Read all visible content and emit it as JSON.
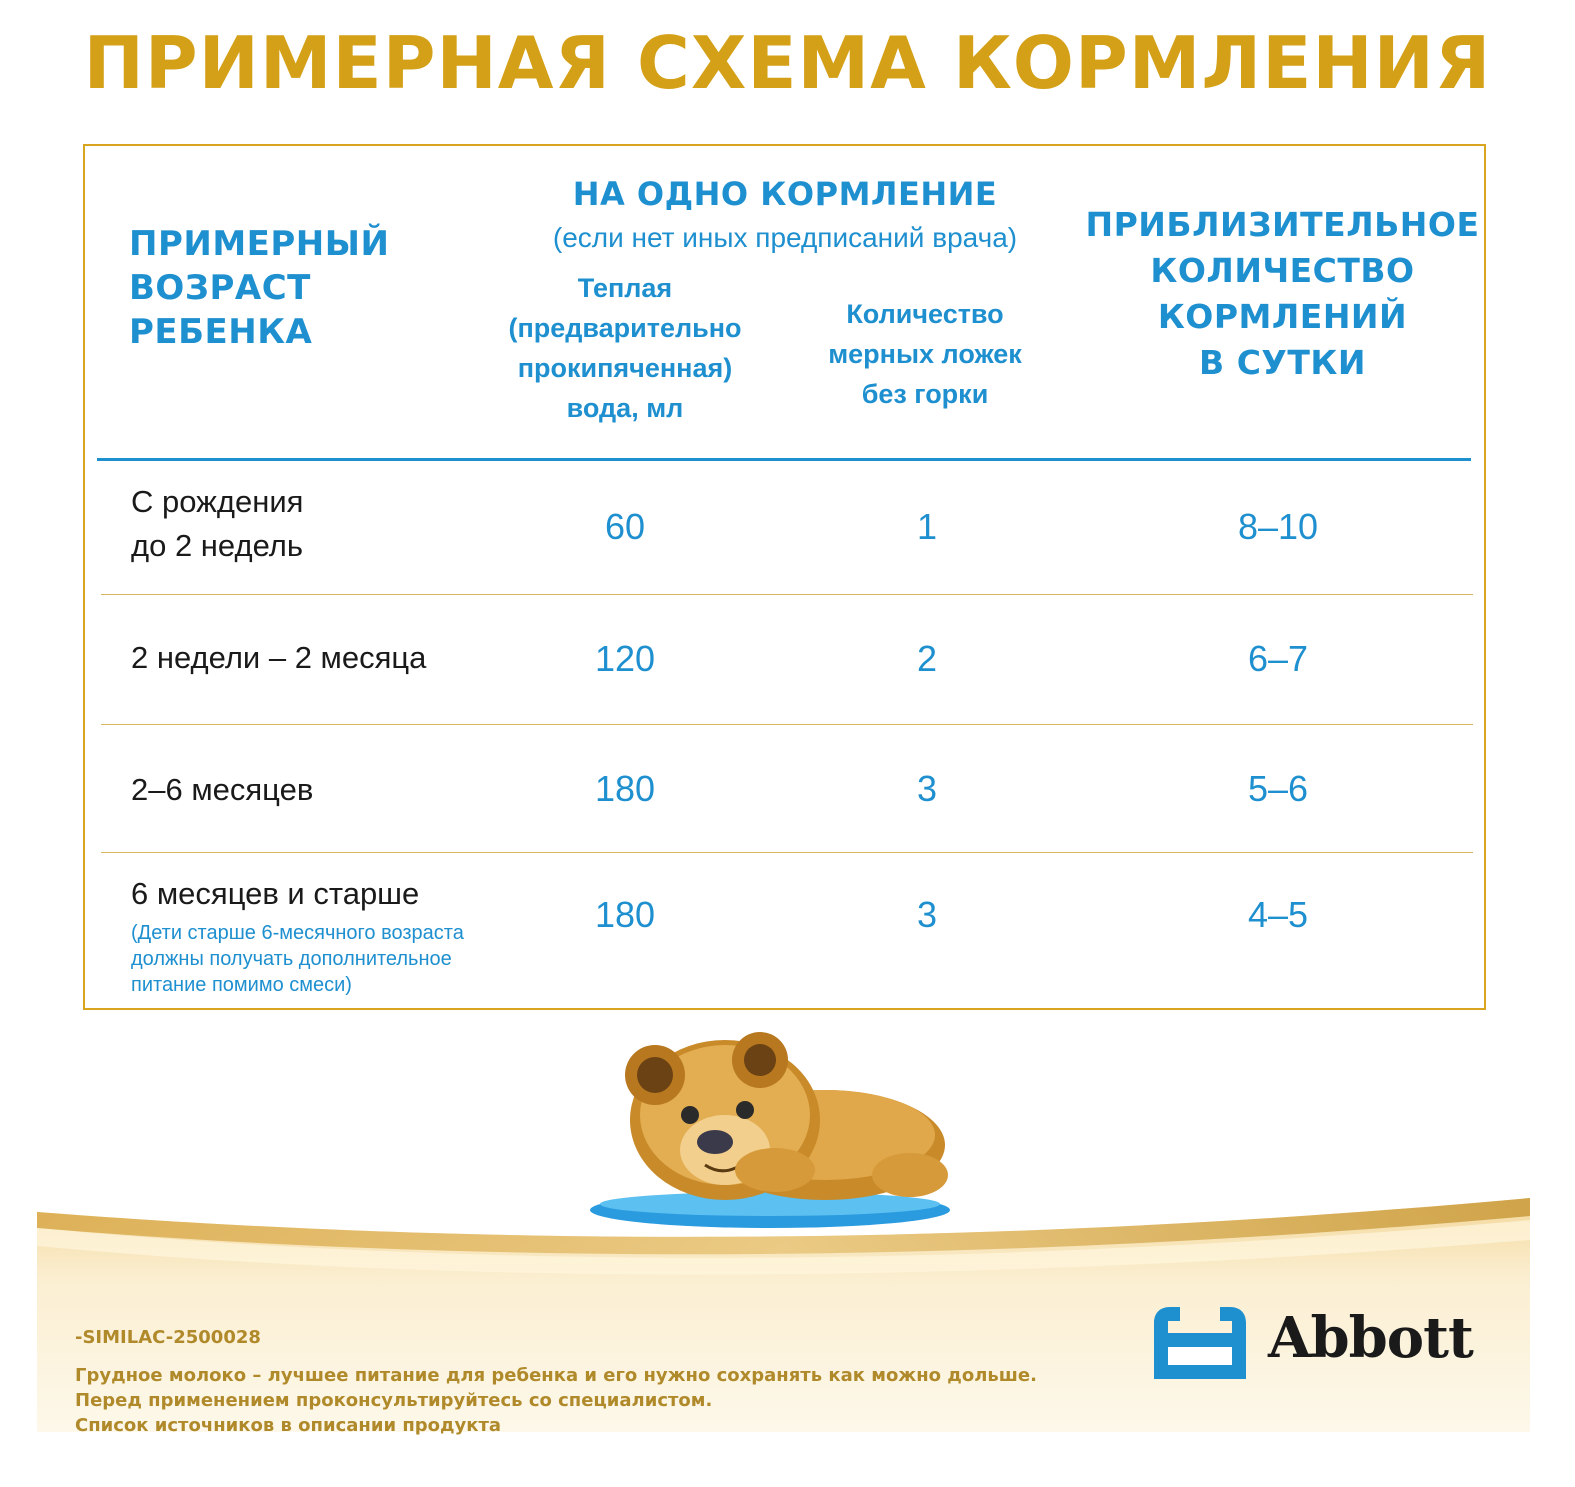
{
  "title": "ПРИМЕРНАЯ СХЕМА КОРМЛЕНИЯ",
  "table": {
    "header": {
      "age_line1": "ПРИМЕРНЫЙ",
      "age_line2": "ВОЗРАСТ",
      "age_line3": "РЕБЕНКА",
      "per_feeding": "НА ОДНО КОРМЛЕНИЕ",
      "per_feeding_note": "(если нет иных предписаний врача)",
      "water_line1": "Теплая",
      "water_line2": "(предварительно",
      "water_line3": "прокипяченная)",
      "water_line4": "вода, мл",
      "spoons_line1": "Количество",
      "spoons_line2": "мерных ложек",
      "spoons_line3": "без горки",
      "count_line1": "ПРИБЛИЗИТЕЛЬНОЕ",
      "count_line2": "КОЛИЧЕСТВО",
      "count_line3": "КОРМЛЕНИЙ",
      "count_line4": "В СУТКИ"
    },
    "rows": [
      {
        "age_line1": "С рождения",
        "age_line2": "до 2 недель",
        "water": "60",
        "spoons": "1",
        "feedings": "8–10"
      },
      {
        "age": "2 недели – 2 месяца",
        "water": "120",
        "spoons": "2",
        "feedings": "6–7"
      },
      {
        "age": "2–6 месяцев",
        "water": "180",
        "spoons": "3",
        "feedings": "5–6"
      },
      {
        "age": "6 месяцев и старше",
        "note_line1": "(Дети старше 6-месячного возраста",
        "note_line2": "должны получать дополнительное",
        "note_line3": "питание помимо смеси)",
        "water": "180",
        "spoons": "3",
        "feedings": "4–5"
      }
    ]
  },
  "footer": {
    "code": "-SIMILAC-2500028",
    "disclaimer_line1": "Грудное молоко – лучшее питание для ребенка и его нужно сохранять как можно дольше.",
    "disclaimer_line2": "Перед применением проконсультируйтесь со специалистом.",
    "disclaimer_line3": "Список источников в описании продукта",
    "brand": "Abbott"
  },
  "colors": {
    "gold": "#d4a017",
    "blue": "#1e8fcf",
    "text": "#1a1a1a",
    "footer_gold": "#b08a2a"
  }
}
